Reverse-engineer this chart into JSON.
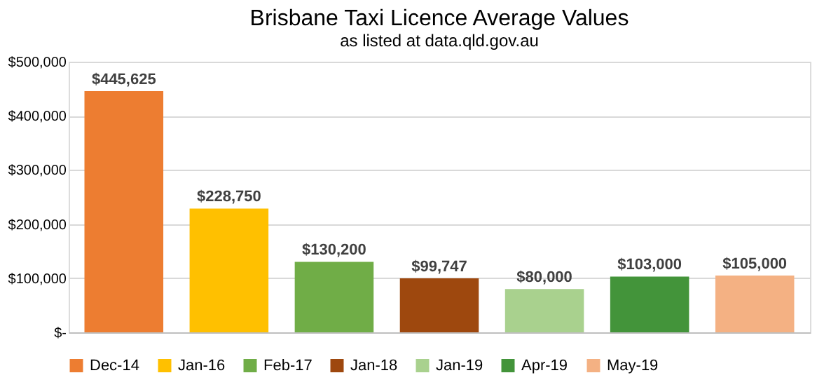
{
  "chart_data": {
    "type": "bar",
    "title": "Brisbane Taxi Licence Average Values",
    "subtitle": "as listed at data.qld.gov.au",
    "categories": [
      null
    ],
    "series": [
      {
        "name": "Dec-14",
        "color": "#ed7d31",
        "values": [
          445625
        ],
        "value_labels": [
          "$445,625"
        ]
      },
      {
        "name": "Jan-16",
        "color": "#ffc000",
        "values": [
          228750
        ],
        "value_labels": [
          "$228,750"
        ]
      },
      {
        "name": "Feb-17",
        "color": "#70ad47",
        "values": [
          130200
        ],
        "value_labels": [
          "$130,200"
        ]
      },
      {
        "name": "Jan-18",
        "color": "#9e480e",
        "values": [
          99747
        ],
        "value_labels": [
          "$99,747"
        ]
      },
      {
        "name": "Jan-19",
        "color": "#a9d18e",
        "values": [
          80000
        ],
        "value_labels": [
          "$80,000"
        ]
      },
      {
        "name": "Apr-19",
        "color": "#43943a",
        "values": [
          103000
        ],
        "value_labels": [
          "$103,000"
        ]
      },
      {
        "name": "May-19",
        "color": "#f4b183",
        "values": [
          105000
        ],
        "value_labels": [
          "$105,000"
        ]
      }
    ],
    "ylim": [
      0,
      500000
    ],
    "yticks": [
      {
        "value": 0,
        "label": "$-"
      },
      {
        "value": 100000,
        "label": "$100,000"
      },
      {
        "value": 200000,
        "label": "$200,000"
      },
      {
        "value": 300000,
        "label": "$300,000"
      },
      {
        "value": 400000,
        "label": "$400,000"
      },
      {
        "value": 500000,
        "label": "$500,000"
      }
    ],
    "grid": "y",
    "legend": "bottom",
    "tick_labels": "y"
  }
}
